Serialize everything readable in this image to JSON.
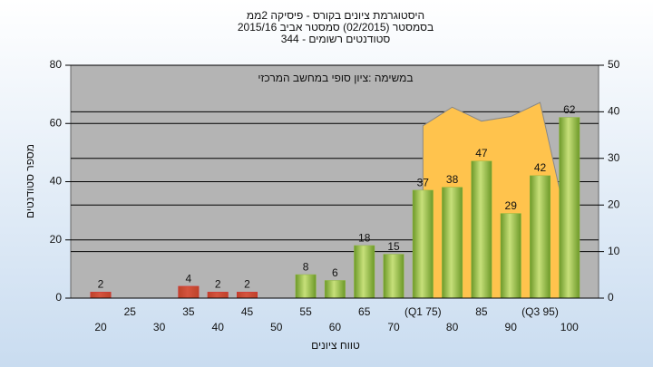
{
  "chart_data": {
    "type": "bar",
    "title_lines": [
      "היסטוגרמת ציונים בקורס - פיסיקה 2ממ",
      "בסמסטר  (02/2015)  סמסטר אביב 2015/16",
      "סטודנטים רשומים - 344"
    ],
    "annotation": "במשימה :ציון סופי במחשב המרכזי",
    "xlabel": "טווח ציונים",
    "ylabel": "מספר סטודנטים",
    "categories": [
      "20",
      "25",
      "30",
      "35",
      "40",
      "45",
      "50",
      "55",
      "60",
      "65",
      "70",
      "(Q1 75)",
      "80",
      "85",
      "90",
      "(Q3 95)",
      "100"
    ],
    "series": [
      {
        "type": "bar",
        "values": [
          2,
          null,
          null,
          4,
          2,
          2,
          null,
          8,
          6,
          18,
          15,
          37,
          38,
          47,
          29,
          42,
          62
        ],
        "colors": [
          "#d9262b",
          "#d9262b",
          "#d9262b",
          "#d9262b",
          "#d9262b",
          "#d9262b",
          "#d9262b",
          "#8fb83e",
          "#8fb83e",
          "#8fb83e",
          "#8fb83e",
          "#8fb83e",
          "#8fb83e",
          "#8fb83e",
          "#8fb83e",
          "#8fb83e",
          "#8fb83e"
        ]
      },
      {
        "type": "area",
        "axis": "y2",
        "color": "#ffc34d",
        "values": [
          null,
          null,
          null,
          null,
          null,
          null,
          null,
          null,
          null,
          null,
          null,
          37,
          41,
          38,
          39,
          42,
          14
        ]
      }
    ],
    "ylim": [
      0,
      80
    ],
    "yticks": [
      0,
      20,
      40,
      60,
      80
    ],
    "y2lim": [
      0,
      50
    ],
    "y2ticks": [
      0,
      10,
      20,
      30,
      40,
      50
    ],
    "grid": true
  }
}
